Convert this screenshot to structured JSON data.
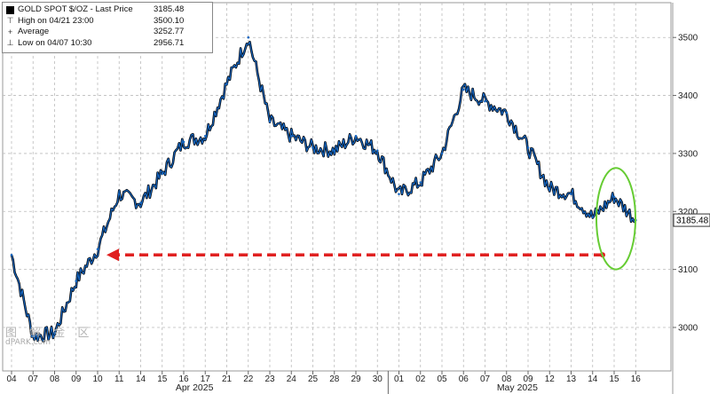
{
  "legend": {
    "title_row": {
      "label": "GOLD SPOT $/OZ - Last Price",
      "value": "3185.48"
    },
    "high_row": {
      "label": "High on 04/21 23:00",
      "value": "3500.10"
    },
    "avg_row": {
      "label": "Average",
      "value": "3252.77"
    },
    "low_row": {
      "label": "Low on 04/07 10:30",
      "value": "2956.71"
    }
  },
  "watermark": {
    "line1": "图 解 金 区",
    "line2": "dPARK.com"
  },
  "colors": {
    "line": "#1565c0",
    "shadow": "#000000",
    "arrow": "#e02020",
    "ellipse": "#66cc33",
    "grid": "#bbbbbb"
  },
  "chart_data": {
    "type": "line",
    "series": [
      {
        "name": "GOLD SPOT $/OZ - Last Price",
        "last": 3185.48
      }
    ],
    "x": [
      "04",
      "07",
      "08",
      "09",
      "10",
      "11",
      "14",
      "15",
      "16",
      "17",
      "21",
      "22",
      "23",
      "24",
      "25",
      "28",
      "29",
      "30",
      "01",
      "02",
      "05",
      "06",
      "07",
      "08",
      "09",
      "12",
      "13",
      "14",
      "15",
      "16"
    ],
    "y": [
      3125,
      2985,
      2990,
      3080,
      3135,
      3230,
      3215,
      3265,
      3320,
      3330,
      3420,
      3500,
      3355,
      3330,
      3310,
      3305,
      3330,
      3305,
      3230,
      3250,
      3300,
      3410,
      3390,
      3370,
      3310,
      3240,
      3230,
      3190,
      3225,
      3185
    ],
    "month_labels": [
      "Apr 2025",
      "May 2025"
    ],
    "y_ticks": [
      3000,
      3100,
      3200,
      3300,
      3400,
      3500
    ],
    "ylim": [
      2925,
      3560
    ],
    "last_price_label": "3185.48",
    "annotations": [
      {
        "type": "arrow",
        "from_date": "15",
        "to_date": "10",
        "y": 3125
      },
      {
        "type": "ellipse",
        "around_date": "15",
        "y_range": [
          3100,
          3275
        ]
      }
    ],
    "grid": true,
    "legend_position": "top-left"
  }
}
